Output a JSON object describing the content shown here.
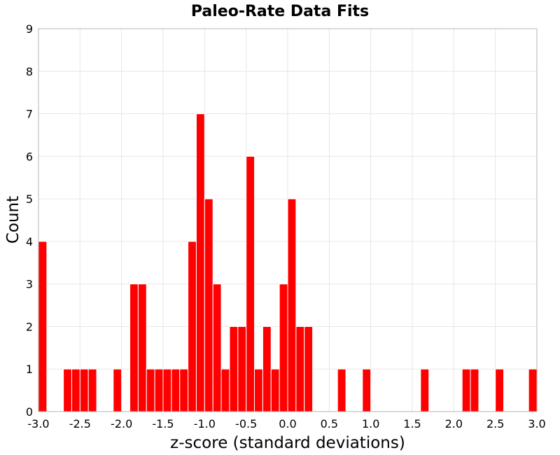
{
  "chart_data": {
    "type": "bar",
    "title": "Paleo-Rate Data Fits",
    "xlabel": "z-score (standard deviations)",
    "ylabel": "Count",
    "xlim": [
      -3.0,
      3.0
    ],
    "ylim": [
      0,
      9
    ],
    "x_ticks": [
      "-3.0",
      "-2.5",
      "-2.0",
      "-1.5",
      "-1.0",
      "-0.5",
      "0.0",
      "0.5",
      "1.0",
      "1.5",
      "2.0",
      "2.5",
      "3.0"
    ],
    "y_ticks": [
      "0",
      "1",
      "2",
      "3",
      "4",
      "5",
      "6",
      "7",
      "8",
      "9"
    ],
    "bin_width": 0.1,
    "grid": true,
    "bar_color": "#ff0000",
    "bins": [
      {
        "x": -2.95,
        "count": 4
      },
      {
        "x": -2.65,
        "count": 1
      },
      {
        "x": -2.55,
        "count": 1
      },
      {
        "x": -2.45,
        "count": 1
      },
      {
        "x": -2.35,
        "count": 1
      },
      {
        "x": -2.05,
        "count": 1
      },
      {
        "x": -1.85,
        "count": 3
      },
      {
        "x": -1.75,
        "count": 3
      },
      {
        "x": -1.65,
        "count": 1
      },
      {
        "x": -1.55,
        "count": 1
      },
      {
        "x": -1.45,
        "count": 1
      },
      {
        "x": -1.35,
        "count": 1
      },
      {
        "x": -1.25,
        "count": 1
      },
      {
        "x": -1.15,
        "count": 4
      },
      {
        "x": -1.05,
        "count": 7
      },
      {
        "x": -0.95,
        "count": 5
      },
      {
        "x": -0.85,
        "count": 3
      },
      {
        "x": -0.75,
        "count": 1
      },
      {
        "x": -0.65,
        "count": 2
      },
      {
        "x": -0.55,
        "count": 2
      },
      {
        "x": -0.45,
        "count": 6
      },
      {
        "x": -0.35,
        "count": 1
      },
      {
        "x": -0.25,
        "count": 2
      },
      {
        "x": -0.15,
        "count": 1
      },
      {
        "x": -0.05,
        "count": 3
      },
      {
        "x": 0.05,
        "count": 5
      },
      {
        "x": 0.15,
        "count": 2
      },
      {
        "x": 0.25,
        "count": 2
      },
      {
        "x": 0.65,
        "count": 1
      },
      {
        "x": 0.95,
        "count": 1
      },
      {
        "x": 1.65,
        "count": 1
      },
      {
        "x": 2.15,
        "count": 1
      },
      {
        "x": 2.25,
        "count": 1
      },
      {
        "x": 2.55,
        "count": 1
      },
      {
        "x": 2.95,
        "count": 1
      }
    ]
  }
}
